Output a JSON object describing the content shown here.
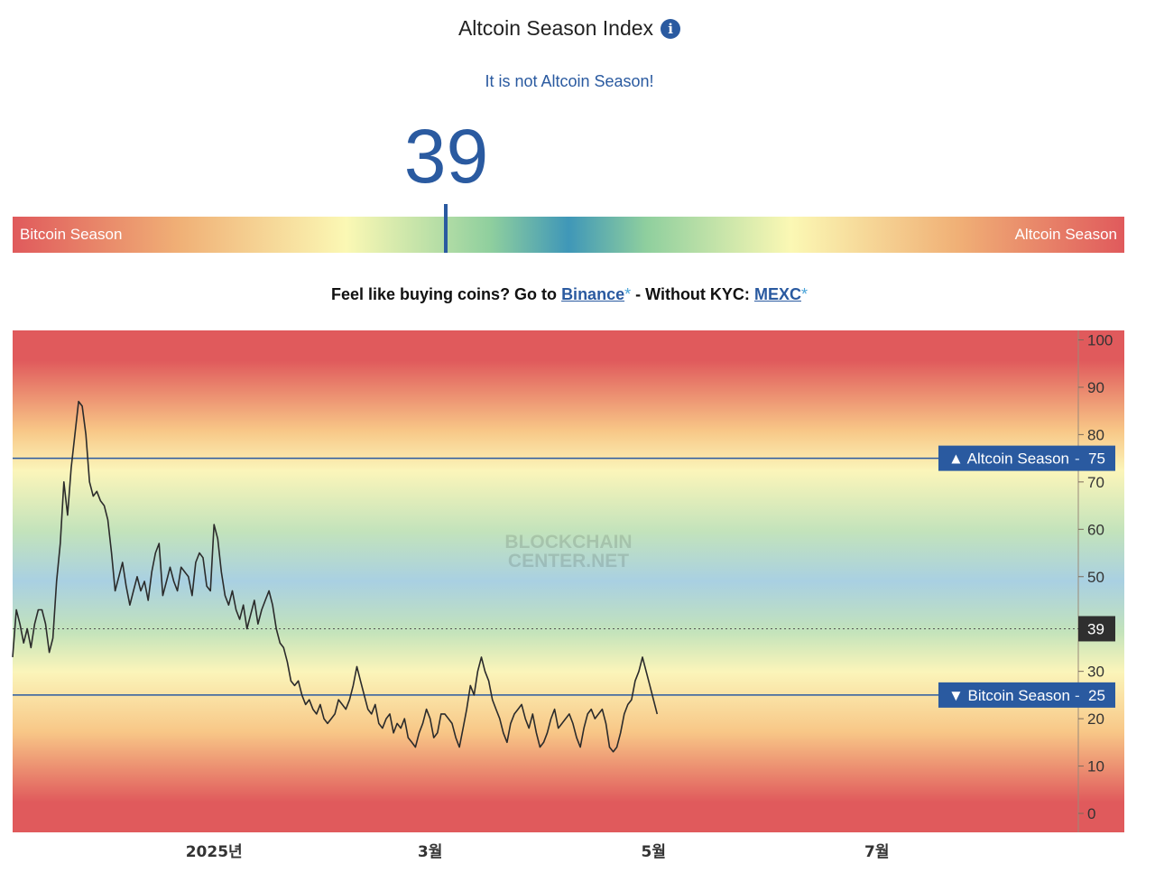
{
  "header": {
    "title": "Altcoin Season Index"
  },
  "status": "It is not Altcoin Season!",
  "index": {
    "value": 39,
    "value_text": "39"
  },
  "gauge": {
    "left_label": "Bitcoin Season",
    "right_label": "Altcoin Season",
    "scale_max": 100
  },
  "promo": {
    "prefix": "Feel like buying coins? Go to",
    "link1": "Binance",
    "star1": "*",
    "middle": "- Without KYC:",
    "link2": "MEXC",
    "star2": "*"
  },
  "chart_data": {
    "type": "line",
    "title": "",
    "xlabel": "",
    "ylabel": "",
    "ylim": [
      -4,
      102
    ],
    "yticks": [
      0,
      10,
      20,
      30,
      40,
      50,
      60,
      70,
      80,
      90,
      100
    ],
    "x_day_range": [
      0,
      291
    ],
    "x_axis_labels": [
      {
        "label": "2025년",
        "day": 55
      },
      {
        "label": "3월",
        "day": 114
      },
      {
        "label": "5월",
        "day": 175
      },
      {
        "label": "7월",
        "day": 236
      }
    ],
    "reference_lines": [
      {
        "name": "Altcoin Season",
        "value": 75,
        "label": "▲ Altcoin Season",
        "value_label": "75"
      },
      {
        "name": "Bitcoin Season",
        "value": 25,
        "label": "▼ Bitcoin Season",
        "value_label": "25"
      }
    ],
    "current": {
      "value": 39,
      "label": "39"
    },
    "watermark": [
      "BLOCKCHAIN",
      "CENTER.NET"
    ],
    "series": [
      {
        "name": "Altcoin Season Index",
        "start_day": 0,
        "values": [
          33,
          43,
          40,
          36,
          39,
          35,
          40,
          43,
          43,
          40,
          34,
          37,
          49,
          57,
          70,
          63,
          73,
          80,
          87,
          86,
          80,
          70,
          67,
          68,
          66,
          65,
          62,
          55,
          47,
          50,
          53,
          48,
          44,
          47,
          50,
          47,
          49,
          45,
          51,
          55,
          57,
          46,
          49,
          52,
          49,
          47,
          52,
          51,
          50,
          46,
          53,
          55,
          54,
          48,
          47,
          61,
          58,
          51,
          46,
          44,
          47,
          43,
          41,
          44,
          39,
          42,
          45,
          40,
          43,
          45,
          47,
          44,
          39,
          36,
          35,
          32,
          28,
          27,
          28,
          25,
          23,
          24,
          22,
          21,
          23,
          20,
          19,
          20,
          21,
          24,
          23,
          22,
          24,
          27,
          31,
          28,
          25,
          22,
          21,
          23,
          19,
          18,
          20,
          21,
          17,
          19,
          18,
          20,
          16,
          15,
          14,
          17,
          19,
          22,
          20,
          16,
          17,
          21,
          21,
          20,
          19,
          16,
          14,
          18,
          22,
          27,
          25,
          30,
          33,
          30,
          28,
          24,
          22,
          20,
          17,
          15,
          19,
          21,
          22,
          23,
          20,
          18,
          21,
          17,
          14,
          15,
          17,
          20,
          22,
          18,
          19,
          20,
          21,
          19,
          16,
          14,
          18,
          21,
          22,
          20,
          21,
          22,
          19,
          14,
          13,
          14,
          17,
          21,
          23,
          24,
          28,
          30,
          33,
          30,
          27,
          24,
          21
        ]
      }
    ]
  }
}
